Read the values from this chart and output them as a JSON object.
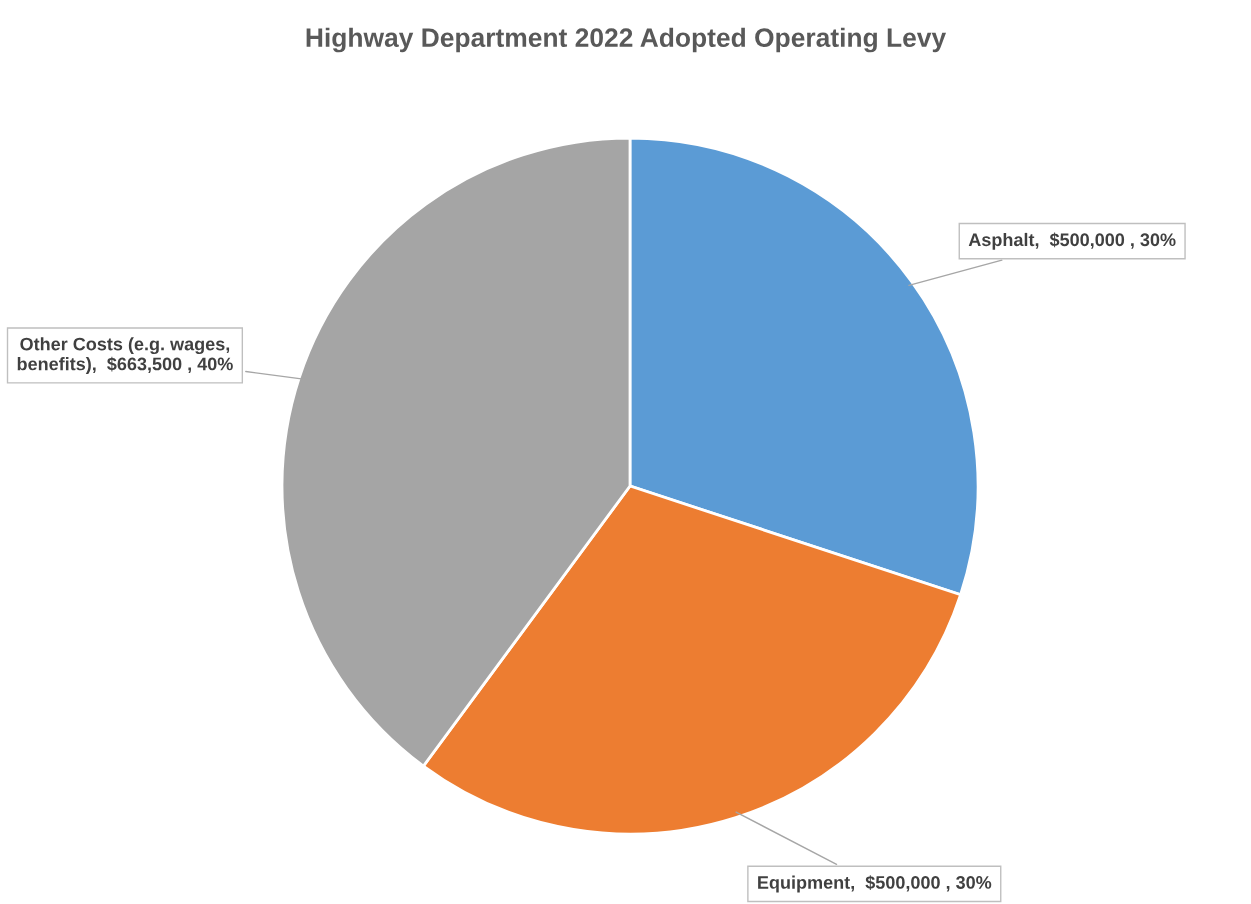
{
  "chart_data": {
    "type": "pie",
    "title": "Highway Department 2022 Adopted Operating Levy",
    "categories": [
      "Asphalt",
      "Equipment",
      "Other Costs (e.g. wages, benefits)"
    ],
    "values": [
      500000,
      500000,
      663500
    ],
    "value_labels": [
      "$500,000 , 30%",
      "$500,000 , 30%",
      "$663,500 , 40%"
    ],
    "colors": [
      "#5b9bd5",
      "#ed7d31",
      "#a5a5a5"
    ],
    "legend": false
  }
}
